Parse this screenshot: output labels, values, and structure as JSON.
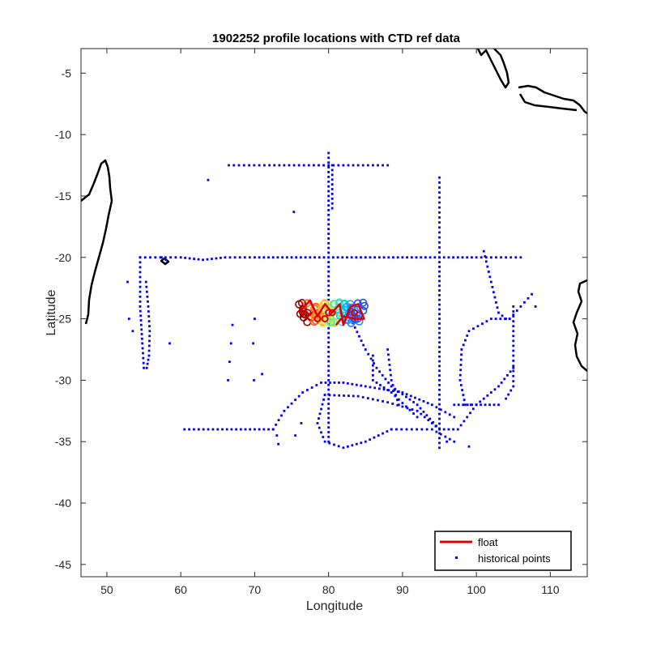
{
  "chart_data": {
    "type": "scatter",
    "title": "1902252 profile locations with CTD ref data",
    "xlabel": "Longitude",
    "ylabel": "Latitude",
    "xlim": [
      46.5,
      115
    ],
    "ylim": [
      -46,
      -3
    ],
    "xticks": [
      50,
      60,
      70,
      80,
      90,
      100,
      110
    ],
    "yticks": [
      -5,
      -10,
      -15,
      -20,
      -25,
      -30,
      -35,
      -40,
      -45
    ],
    "grid": false,
    "legend_position": "bottom-right",
    "legend": [
      {
        "label": "float",
        "color": "#e00000",
        "marker": "line"
      },
      {
        "label": "historical points",
        "color": "#0000ff",
        "marker": "dot"
      }
    ],
    "series": [
      {
        "name": "historical points",
        "color": "#0000ff",
        "tracks": [
          [
            [
              54.5,
              -20
            ],
            [
              60,
              -20
            ],
            [
              63,
              -20.2
            ],
            [
              66,
              -20
            ],
            [
              70,
              -20
            ],
            [
              75,
              -20
            ],
            [
              80,
              -20
            ],
            [
              85,
              -20
            ],
            [
              90,
              -20
            ],
            [
              95,
              -20
            ],
            [
              100,
              -20
            ],
            [
              106,
              -20
            ]
          ],
          [
            [
              54.5,
              -20
            ],
            [
              54.5,
              -24
            ],
            [
              54.8,
              -27
            ],
            [
              55,
              -29
            ]
          ],
          [
            [
              55.3,
              -22
            ],
            [
              55.6,
              -24
            ],
            [
              55.8,
              -26
            ],
            [
              55.7,
              -28
            ],
            [
              55.4,
              -29
            ]
          ],
          [
            [
              57.4,
              -20
            ],
            [
              58,
              -20.2
            ]
          ],
          [
            [
              80,
              -11.5
            ],
            [
              80,
              -15
            ],
            [
              80,
              -20
            ],
            [
              80,
              -25
            ],
            [
              80,
              -30
            ],
            [
              80,
              -35
            ]
          ],
          [
            [
              80.5,
              -12.5
            ],
            [
              80.5,
              -16
            ]
          ],
          [
            [
              95,
              -13.5
            ],
            [
              95,
              -20
            ],
            [
              95,
              -25
            ],
            [
              95,
              -30
            ],
            [
              95,
              -35.5
            ]
          ],
          [
            [
              66.5,
              -12.5
            ],
            [
              72,
              -12.5
            ],
            [
              76,
              -12.5
            ],
            [
              80,
              -12.5
            ],
            [
              84,
              -12.5
            ],
            [
              88,
              -12.5
            ]
          ],
          [
            [
              60.5,
              -34
            ],
            [
              65,
              -34
            ],
            [
              70,
              -34
            ],
            [
              72.5,
              -34
            ]
          ],
          [
            [
              72.5,
              -34
            ],
            [
              74,
              -32.5
            ],
            [
              76.5,
              -31
            ],
            [
              79,
              -30.2
            ],
            [
              82,
              -30.2
            ],
            [
              85,
              -30.5
            ],
            [
              90,
              -31
            ],
            [
              94,
              -32
            ],
            [
              97,
              -33
            ]
          ],
          [
            [
              79.5,
              -31.2
            ],
            [
              84,
              -31.3
            ],
            [
              88,
              -31.8
            ],
            [
              92,
              -32.5
            ],
            [
              95,
              -34
            ],
            [
              97.5,
              -34
            ],
            [
              100,
              -32
            ],
            [
              103,
              -30.5
            ],
            [
              105,
              -29
            ]
          ],
          [
            [
              79.5,
              -31.2
            ],
            [
              78.5,
              -33.5
            ],
            [
              79.5,
              -35
            ],
            [
              82,
              -35.5
            ],
            [
              85,
              -35
            ],
            [
              88.5,
              -34
            ]
          ],
          [
            [
              83,
              -25
            ],
            [
              85,
              -27.5
            ],
            [
              86.5,
              -29
            ],
            [
              88.5,
              -30.5
            ],
            [
              92,
              -32
            ],
            [
              95,
              -34
            ]
          ],
          [
            [
              86,
              -28
            ],
            [
              86,
              -30
            ],
            [
              88.5,
              -31
            ],
            [
              92,
              -33
            ]
          ],
          [
            [
              88,
              -27.5
            ],
            [
              88.5,
              -30
            ],
            [
              89.5,
              -32
            ]
          ],
          [
            [
              97,
              -32
            ],
            [
              100,
              -32
            ],
            [
              103,
              -32
            ]
          ],
          [
            [
              105,
              -24
            ],
            [
              105,
              -26
            ],
            [
              105,
              -28
            ],
            [
              105,
              -30.5
            ],
            [
              104,
              -31.5
            ]
          ],
          [
            [
              104.5,
              -25
            ],
            [
              102,
              -25
            ],
            [
              99,
              -26
            ],
            [
              98,
              -27.5
            ],
            [
              97.8,
              -30
            ],
            [
              98.5,
              -32
            ],
            [
              100,
              -32
            ]
          ],
          [
            [
              101,
              -19.5
            ],
            [
              102,
              -22
            ],
            [
              103,
              -24.5
            ],
            [
              104,
              -25
            ]
          ],
          [
            [
              104.5,
              -25
            ],
            [
              106,
              -24
            ],
            [
              107.5,
              -23
            ]
          ],
          [
            [
              88.5,
              -34
            ],
            [
              94,
              -34
            ],
            [
              97,
              -35
            ]
          ]
        ],
        "points": [
          [
            63.7,
            -13.7
          ],
          [
            75.3,
            -16.3
          ],
          [
            67,
            -25.5
          ],
          [
            66.8,
            -27
          ],
          [
            66.6,
            -28.5
          ],
          [
            66.4,
            -30
          ],
          [
            70,
            -25
          ],
          [
            69.8,
            -27
          ],
          [
            69.9,
            -30
          ],
          [
            71,
            -29.5
          ],
          [
            73,
            -34.5
          ],
          [
            73.2,
            -35.2
          ],
          [
            75.5,
            -34.5
          ],
          [
            76.3,
            -33.5
          ],
          [
            53,
            -25
          ],
          [
            53.5,
            -26
          ],
          [
            58.5,
            -27
          ],
          [
            52.8,
            -22
          ],
          [
            108,
            -24
          ],
          [
            96,
            -35
          ],
          [
            99,
            -35.4
          ]
        ]
      },
      {
        "name": "float",
        "color": "#e00000",
        "tracks": [
          [
            [
              76,
              -24.5
            ],
            [
              77.5,
              -23.5
            ],
            [
              78.5,
              -24.8
            ],
            [
              79.5,
              -23.8
            ],
            [
              80.5,
              -24.5
            ],
            [
              81.5,
              -23.8
            ],
            [
              82,
              -25.5
            ],
            [
              83,
              -24
            ],
            [
              84,
              -23.8
            ],
            [
              84.8,
              -25
            ],
            [
              83.5,
              -25
            ],
            [
              82,
              -24.8
            ],
            [
              81,
              -25.5
            ]
          ]
        ],
        "points": [
          [
            80,
            -24.5
          ],
          [
            79.5,
            -25
          ],
          [
            80.5,
            -24.5
          ],
          [
            83.5,
            -24.5
          ],
          [
            78.5,
            -25
          ]
        ]
      }
    ]
  }
}
